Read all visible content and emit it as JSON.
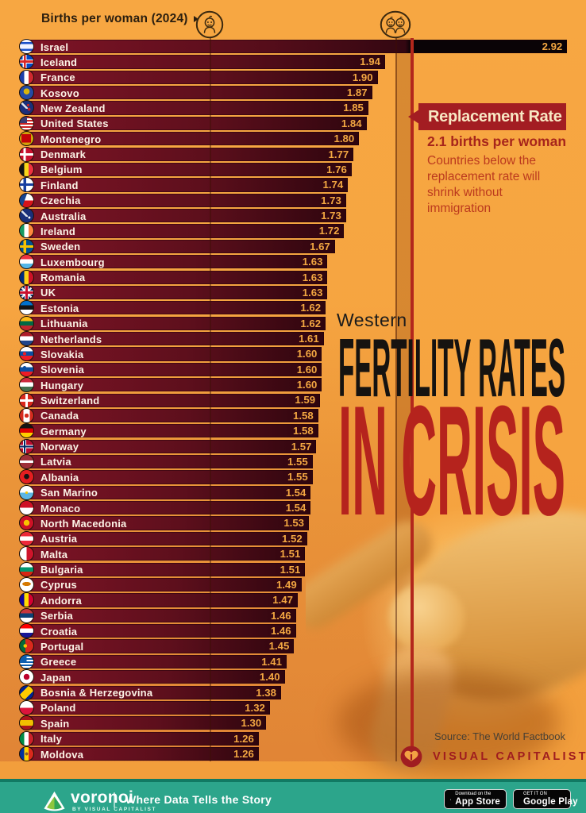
{
  "header": {
    "title": "Births per woman (2024)"
  },
  "replacement": {
    "label": "Replacement Rate",
    "rate_text": "2.1 births per woman",
    "description": "Countries below the replacement rate will shrink without immigration"
  },
  "title": {
    "kicker": "Western",
    "line1": "FERTILITY RATES",
    "line2": "IN CRISIS"
  },
  "source": "Source: The World Factbook",
  "brand": "VISUAL CAPITALIST",
  "footer": {
    "logo_text": "voronoi",
    "logo_sub": "BY VISUAL CAPITALIST",
    "tagline": "Where Data Tells the Story",
    "appstore_line1": "Download on the",
    "appstore_line2": "App Store",
    "googleplay_line1": "GET IT ON",
    "googleplay_line2": "Google Play"
  },
  "colors": {
    "background_amber": "#f7a742",
    "bar_maroon_light": "#7f1426",
    "bar_maroon_dark": "#2e050e",
    "israel_black": "#0a0306",
    "value_gold": "#f3a742",
    "label_cream": "#fdf4e7",
    "replacement_red": "#b3271c",
    "callout_box_red": "#a31d22",
    "callout_text_cream": "#f8e8c4",
    "crisis_red": "#b5231d",
    "footer_teal": "#2ca58b"
  },
  "chart_data": {
    "type": "bar",
    "orientation": "horizontal",
    "title": "Births per woman (2024)",
    "x_axis_markers": [
      1,
      2
    ],
    "xlim": [
      0,
      3
    ],
    "replacement_rate": 2.1,
    "note": "Israel bar shown black above the replacement-rate line",
    "countries": [
      {
        "name": "Israel",
        "value": 2.92,
        "flag": "linear-gradient(180deg,#f2f4ff 0 18%,#1b50c8 18% 32%,#f2f4ff 32% 68%,#1b50c8 68% 82%,#f2f4ff 82%)"
      },
      {
        "name": "Iceland",
        "value": 1.94,
        "flag": "linear-gradient(90deg,transparent 0 28%,#d72828 28% 44%,transparent 44%),linear-gradient(180deg,transparent 0 42%,#d72828 42% 58%,transparent 58%),linear-gradient(90deg,transparent 0 22%,#fff 22% 50%,transparent 50%),linear-gradient(180deg,transparent 0 34%,#fff 34% 66%,transparent 66%),linear-gradient(#0247c4,#0247c4)"
      },
      {
        "name": "France",
        "value": 1.9,
        "flag": "linear-gradient(90deg,#1c3faa 0 33%,#fff 33% 66%,#d0282e 66%)"
      },
      {
        "name": "Kosovo",
        "value": 1.87,
        "flag": "radial-gradient(circle at 50% 42%,#d9b40a 0 28%,transparent 30%),linear-gradient(#244aa5,#244aa5)"
      },
      {
        "name": "New Zealand",
        "value": 1.85,
        "flag": "radial-gradient(circle at 68% 62%,#cc2222 0 11%,transparent 13%),radial-gradient(circle at 62% 32%,#cc2222 0 9%,transparent 11%),linear-gradient(45deg,transparent 0 40%,rgba(255,255,255,.85) 40% 55%,transparent 55%) 0 0/60% 60% no-repeat,linear-gradient(#1a2f7a,#1a2f7a)"
      },
      {
        "name": "United States",
        "value": 1.84,
        "flag": "linear-gradient(#3c3b6e,#3c3b6e) 0 0/55% 48% no-repeat,repeating-linear-gradient(180deg,#c22 0 2px,#fff 2px 4px)"
      },
      {
        "name": "Montenegro",
        "value": 1.8,
        "flag": "linear-gradient(#c40308,#c40308) 50% 50%/72% 62% no-repeat,linear-gradient(#d3a10a,#d3a10a)"
      },
      {
        "name": "Denmark",
        "value": 1.77,
        "flag": "linear-gradient(90deg,transparent 0 26%,#fff 26% 44%,transparent 44%),linear-gradient(180deg,transparent 0 40%,#fff 40% 58%,transparent 58%),linear-gradient(#c8102e,#c8102e)"
      },
      {
        "name": "Belgium",
        "value": 1.76,
        "flag": "linear-gradient(90deg,#141414 0 33%,#f7d618 33% 66%,#ef3340 66%)"
      },
      {
        "name": "Finland",
        "value": 1.74,
        "flag": "linear-gradient(90deg,transparent 0 26%,#173fa0 26% 46%,transparent 46%),linear-gradient(180deg,transparent 0 40%,#173fa0 40% 58%,transparent 58%),linear-gradient(#fff,#fff)"
      },
      {
        "name": "Czechia",
        "value": 1.73,
        "flag": "linear-gradient(110deg,#17458f 0 38%,transparent 40%),linear-gradient(180deg,#fff 0 50%,#d7141a 50%)"
      },
      {
        "name": "Australia",
        "value": 1.73,
        "flag": "radial-gradient(circle at 70% 65%,#fff 0 8%,transparent 10%),linear-gradient(45deg,transparent 0 40%,rgba(255,255,255,.85) 40% 55%,transparent 55%) 0 0/60% 60% no-repeat,linear-gradient(#1a2f7a,#1a2f7a)"
      },
      {
        "name": "Ireland",
        "value": 1.72,
        "flag": "linear-gradient(90deg,#169b62 0 33%,#fff 33% 66%,#ff883e 66%)"
      },
      {
        "name": "Sweden",
        "value": 1.67,
        "flag": "linear-gradient(90deg,transparent 0 26%,#f8c300 26% 46%,transparent 46%),linear-gradient(180deg,transparent 0 40%,#f8c300 40% 58%,transparent 58%),linear-gradient(#005293,#005293)"
      },
      {
        "name": "Luxembourg",
        "value": 1.63,
        "flag": "linear-gradient(180deg,#ef3340 0 33%,#fff 33% 66%,#54b7e8 66%)"
      },
      {
        "name": "Romania",
        "value": 1.63,
        "flag": "linear-gradient(90deg,#002b7f 0 33%,#fcd116 33% 66%,#ce1126 66%)"
      },
      {
        "name": "UK",
        "value": 1.63,
        "flag": "linear-gradient(90deg,transparent 0 42%,#c8102e 42% 58%,transparent 58%),linear-gradient(180deg,transparent 0 42%,#c8102e 42% 58%,transparent 58%),linear-gradient(90deg,transparent 0 34%,#fff 34% 66%,transparent 66%),linear-gradient(180deg,transparent 0 34%,#fff 34% 66%,transparent 66%),linear-gradient(45deg,transparent 0 45%,rgba(255,255,255,.9) 45% 55%,transparent 55%),linear-gradient(135deg,transparent 0 45%,rgba(255,255,255,.9) 45% 55%,transparent 55%),linear-gradient(#012169,#012169)"
      },
      {
        "name": "Estonia",
        "value": 1.62,
        "flag": "linear-gradient(180deg,#0072ce 0 33%,#141414 33% 66%,#fff 66%)"
      },
      {
        "name": "Lithuania",
        "value": 1.62,
        "flag": "linear-gradient(180deg,#fdb913 0 33%,#006a44 33% 66%,#c1272d 66%)"
      },
      {
        "name": "Netherlands",
        "value": 1.61,
        "flag": "linear-gradient(180deg,#ae1c28 0 33%,#fff 33% 66%,#21468b 66%)"
      },
      {
        "name": "Slovakia",
        "value": 1.6,
        "flag": "radial-gradient(circle at 35% 50%,#ee1c25 0 14%,transparent 16%),linear-gradient(180deg,#fff 0 33%,#0b4ea2 33% 66%,#ee1c25 66%)"
      },
      {
        "name": "Slovenia",
        "value": 1.6,
        "flag": "radial-gradient(circle at 35% 35%,#0b4ea2 0 12%,transparent 14%),linear-gradient(180deg,#fff 0 33%,#0b4ea2 33% 66%,#ee1c25 66%)"
      },
      {
        "name": "Hungary",
        "value": 1.6,
        "flag": "linear-gradient(180deg,#cd2a3e 0 33%,#fff 33% 66%,#436f4d 66%)"
      },
      {
        "name": "Switzerland",
        "value": 1.59,
        "flag": "linear-gradient(90deg,transparent 0 41%,#fff 41% 59%,transparent 59%),linear-gradient(180deg,transparent 0 41%,#fff 41% 59%,transparent 59%),linear-gradient(#da291c,#da291c)"
      },
      {
        "name": "Canada",
        "value": 1.58,
        "flag": "radial-gradient(circle at 50% 50%,#d52b1e 0 21%,transparent 23%),linear-gradient(90deg,#d52b1e 0 26%,#fff 26% 74%,#d52b1e 74%)"
      },
      {
        "name": "Germany",
        "value": 1.58,
        "flag": "linear-gradient(180deg,#141414 0 33%,#dd0000 33% 66%,#ffce00 66%)"
      },
      {
        "name": "Norway",
        "value": 1.57,
        "flag": "linear-gradient(90deg,transparent 0 30%,#002868 30% 42%,transparent 42%),linear-gradient(180deg,transparent 0 44%,#002868 44% 56%,transparent 56%),linear-gradient(90deg,transparent 0 24%,#fff 24% 48%,transparent 48%),linear-gradient(180deg,transparent 0 38%,#fff 38% 62%,transparent 62%),linear-gradient(#ba0c2f,#ba0c2f)"
      },
      {
        "name": "Latvia",
        "value": 1.55,
        "flag": "linear-gradient(180deg,#9e3039 0 40%,#fff 40% 60%,#9e3039 60%)"
      },
      {
        "name": "Albania",
        "value": 1.55,
        "flag": "radial-gradient(circle at 50% 48%,#141414 0 26%,transparent 28%),linear-gradient(#e41e20,#e41e20)"
      },
      {
        "name": "San Marino",
        "value": 1.54,
        "flag": "radial-gradient(circle at 50% 50%,#f8c300 0 12%,transparent 14%),linear-gradient(180deg,#fff 0 50%,#5eb6e4 50%)"
      },
      {
        "name": "Monaco",
        "value": 1.54,
        "flag": "linear-gradient(180deg,#ce1126 0 50%,#fff 50%)"
      },
      {
        "name": "North Macedonia",
        "value": 1.53,
        "flag": "radial-gradient(circle at 50% 50%,#f8c300 0 30%,transparent 32%),linear-gradient(#ce1126,#ce1126)"
      },
      {
        "name": "Austria",
        "value": 1.52,
        "flag": "linear-gradient(180deg,#ed2939 0 33%,#fff 33% 66%,#ed2939 66%)"
      },
      {
        "name": "Malta",
        "value": 1.51,
        "flag": "linear-gradient(90deg,#fff 0 50%,#cf142b 50%)"
      },
      {
        "name": "Bulgaria",
        "value": 1.51,
        "flag": "linear-gradient(180deg,#fff 0 33%,#00966e 33% 66%,#d62612 66%)"
      },
      {
        "name": "Cyprus",
        "value": 1.49,
        "flag": "radial-gradient(ellipse 32% 15% at 50% 44%,#d57800 0 98%,transparent 100%),linear-gradient(#fff,#fff)"
      },
      {
        "name": "Andorra",
        "value": 1.47,
        "flag": "linear-gradient(90deg,#10069f 0 33%,#fedd00 33% 66%,#d50032 66%)"
      },
      {
        "name": "Serbia",
        "value": 1.46,
        "flag": "linear-gradient(180deg,#c6363c 0 33%,#0c4076 33% 66%,#fff 66%)"
      },
      {
        "name": "Croatia",
        "value": 1.46,
        "flag": "radial-gradient(circle at 50% 45%,#fff 0 12%,transparent 14%),linear-gradient(180deg,#f00 0 33%,#fff 33% 66%,#171796 66%)"
      },
      {
        "name": "Portugal",
        "value": 1.45,
        "flag": "radial-gradient(circle at 40% 50%,#f8c300 0 16%,transparent 18%),linear-gradient(90deg,#046a38 0 40%,#da291c 40%)"
      },
      {
        "name": "Greece",
        "value": 1.41,
        "flag": "linear-gradient(#0d5eaf,#0d5eaf) 0 0/50% 50% no-repeat,repeating-linear-gradient(180deg,#0d5eaf 0 2px,#fff 2px 4px)"
      },
      {
        "name": "Japan",
        "value": 1.4,
        "flag": "radial-gradient(circle at 50% 50%,#bc002d 0 30%,transparent 32%),linear-gradient(#fff,#fff)"
      },
      {
        "name": "Bosnia & Herzegovina",
        "value": 1.38,
        "flag": "linear-gradient(135deg,transparent 0 32%,#fecb00 32% 68%,transparent 68%),linear-gradient(#002395,#002395)"
      },
      {
        "name": "Poland",
        "value": 1.32,
        "flag": "linear-gradient(180deg,#fff 0 50%,#dc143c 50%)"
      },
      {
        "name": "Spain",
        "value": 1.3,
        "flag": "linear-gradient(180deg,#aa151b 0 28%,#f1bf00 28% 72%,#aa151b 72%)"
      },
      {
        "name": "Italy",
        "value": 1.26,
        "flag": "linear-gradient(90deg,#008c45 0 33%,#fff 33% 66%,#cd212a 66%)"
      },
      {
        "name": "Moldova",
        "value": 1.26,
        "flag": "radial-gradient(circle at 50% 50%,#8a5a2b 0 15%,transparent 17%),linear-gradient(90deg,#0032a0 0 33%,#ffd200 33% 66%,#da291c 66%)"
      }
    ]
  }
}
